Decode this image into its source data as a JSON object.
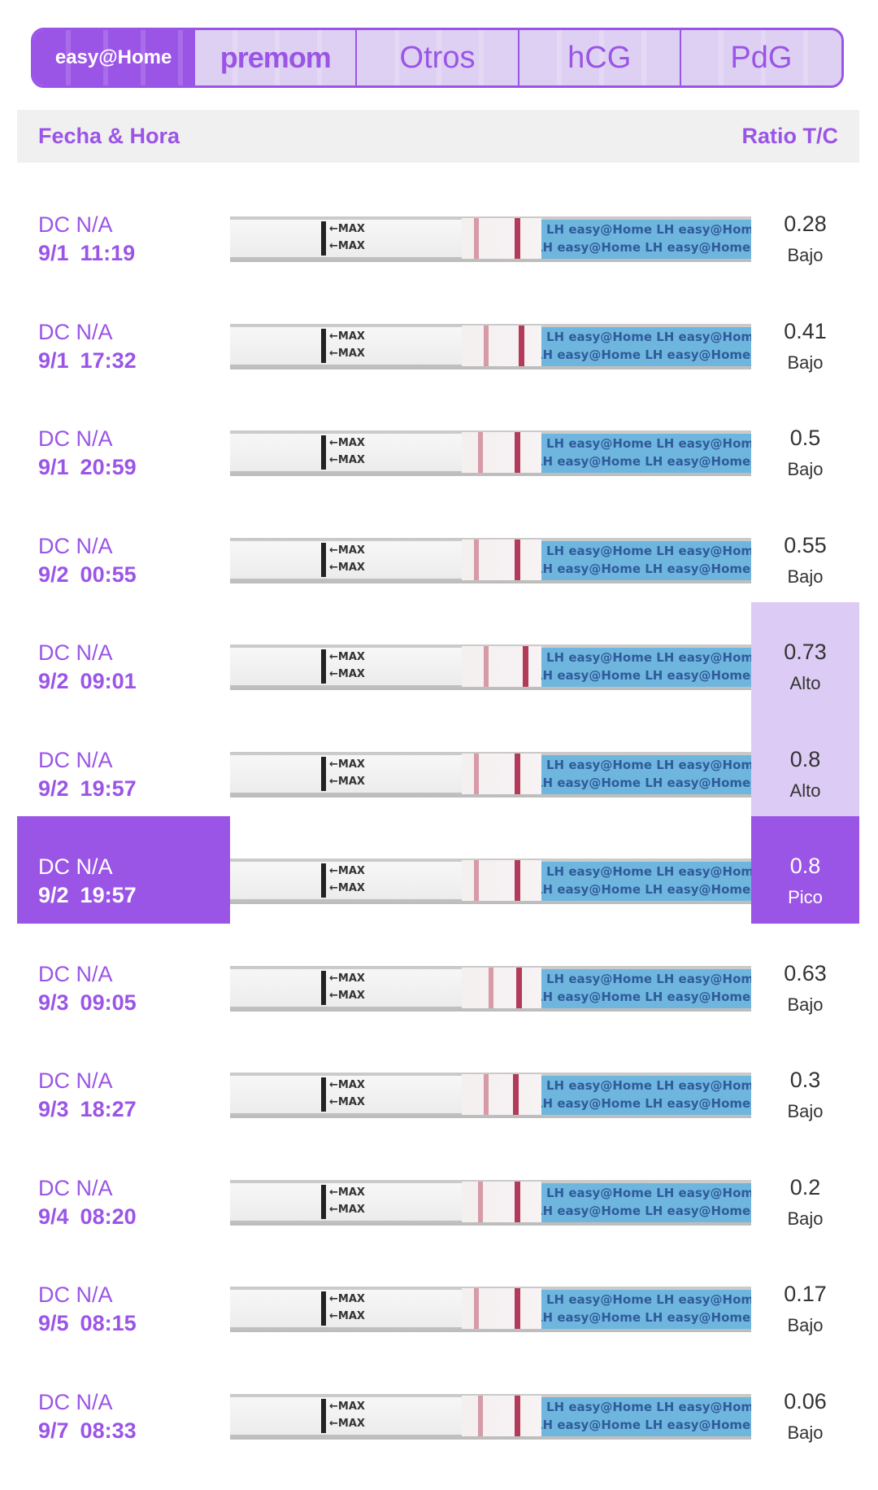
{
  "tabs": {
    "easyhome": "easy@Home",
    "premom": "premom",
    "otros": "Otros",
    "hcg": "hCG",
    "pdg": "PdG"
  },
  "header": {
    "left": "Fecha & Hora",
    "right": "Ratio T/C"
  },
  "strip_text": {
    "max": "←MAX",
    "lh_row": "LH  easy@Home  LH  easy@Home  LH"
  },
  "rows": [
    {
      "dc": "DC N/A",
      "date": "9/1",
      "time": "11:19",
      "ratio": "0.28",
      "level": "Bajo",
      "state": "low"
    },
    {
      "dc": "DC N/A",
      "date": "9/1",
      "time": "17:32",
      "ratio": "0.41",
      "level": "Bajo",
      "state": "low"
    },
    {
      "dc": "DC N/A",
      "date": "9/1",
      "time": "20:59",
      "ratio": "0.5",
      "level": "Bajo",
      "state": "low"
    },
    {
      "dc": "DC N/A",
      "date": "9/2",
      "time": "00:55",
      "ratio": "0.55",
      "level": "Bajo",
      "state": "low"
    },
    {
      "dc": "DC N/A",
      "date": "9/2",
      "time": "09:01",
      "ratio": "0.73",
      "level": "Alto",
      "state": "alto"
    },
    {
      "dc": "DC N/A",
      "date": "9/2",
      "time": "19:57",
      "ratio": "0.8",
      "level": "Alto",
      "state": "alto"
    },
    {
      "dc": "DC N/A",
      "date": "9/2",
      "time": "19:57",
      "ratio": "0.8",
      "level": "Pico",
      "state": "peak"
    },
    {
      "dc": "DC N/A",
      "date": "9/3",
      "time": "09:05",
      "ratio": "0.63",
      "level": "Bajo",
      "state": "low"
    },
    {
      "dc": "DC N/A",
      "date": "9/3",
      "time": "18:27",
      "ratio": "0.3",
      "level": "Bajo",
      "state": "low"
    },
    {
      "dc": "DC N/A",
      "date": "9/4",
      "time": "08:20",
      "ratio": "0.2",
      "level": "Bajo",
      "state": "low"
    },
    {
      "dc": "DC N/A",
      "date": "9/5",
      "time": "08:15",
      "ratio": "0.17",
      "level": "Bajo",
      "state": "low"
    },
    {
      "dc": "DC N/A",
      "date": "9/7",
      "time": "08:33",
      "ratio": "0.06",
      "level": "Bajo",
      "state": "low"
    }
  ],
  "colors": {
    "accent": "#9b55e6",
    "alto_bg": "#dcccf5",
    "tab_bg": "#ded0f3",
    "header_bg": "#f0f0f0"
  }
}
